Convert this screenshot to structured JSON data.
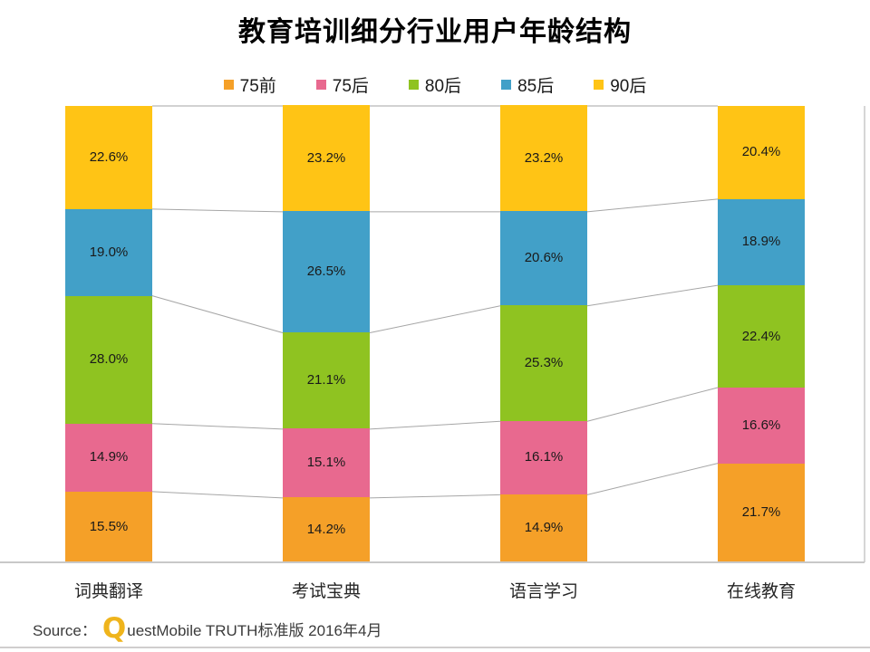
{
  "title": "教育培训细分行业用户年龄结构",
  "legend": [
    {
      "label": "75前",
      "color": "#F5A028"
    },
    {
      "label": "75后",
      "color": "#E8698F"
    },
    {
      "label": "80后",
      "color": "#8FC321"
    },
    {
      "label": "85后",
      "color": "#42A0C8"
    },
    {
      "label": "90后",
      "color": "#FFC415"
    }
  ],
  "chart_data": {
    "type": "bar",
    "stacked": true,
    "percent_stacked": true,
    "unit": "%",
    "title": "教育培训细分行业用户年龄结构",
    "categories": [
      "词典翻译",
      "考试宝典",
      "语言学习",
      "在线教育"
    ],
    "series": [
      {
        "name": "75前",
        "color": "#F5A028",
        "values": [
          15.5,
          14.2,
          14.9,
          21.7
        ]
      },
      {
        "name": "75后",
        "color": "#E8698F",
        "values": [
          14.9,
          15.1,
          16.1,
          16.6
        ]
      },
      {
        "name": "80后",
        "color": "#8FC321",
        "values": [
          28.0,
          21.1,
          25.3,
          22.4
        ]
      },
      {
        "name": "85后",
        "color": "#42A0C8",
        "values": [
          19.0,
          26.5,
          20.6,
          18.9
        ]
      },
      {
        "name": "90后",
        "color": "#FFC415",
        "values": [
          22.6,
          23.2,
          23.2,
          20.4
        ]
      }
    ],
    "ylim": [
      0,
      100
    ],
    "legend_position": "top",
    "data_labels": true,
    "grid": false,
    "series_connector_lines": true
  },
  "source": {
    "prefix": "Source：",
    "logo_letter": "Q",
    "text": "uestMobile TRUTH标准版 2016年4月"
  },
  "colors": {
    "title_text": "#000000",
    "label_text": "#1a1a1a",
    "connector_line": "#a6a6a6",
    "axis_line": "#c8c8c8",
    "bottom_border": "#d0cece",
    "logo_gold": "#efb41c"
  }
}
